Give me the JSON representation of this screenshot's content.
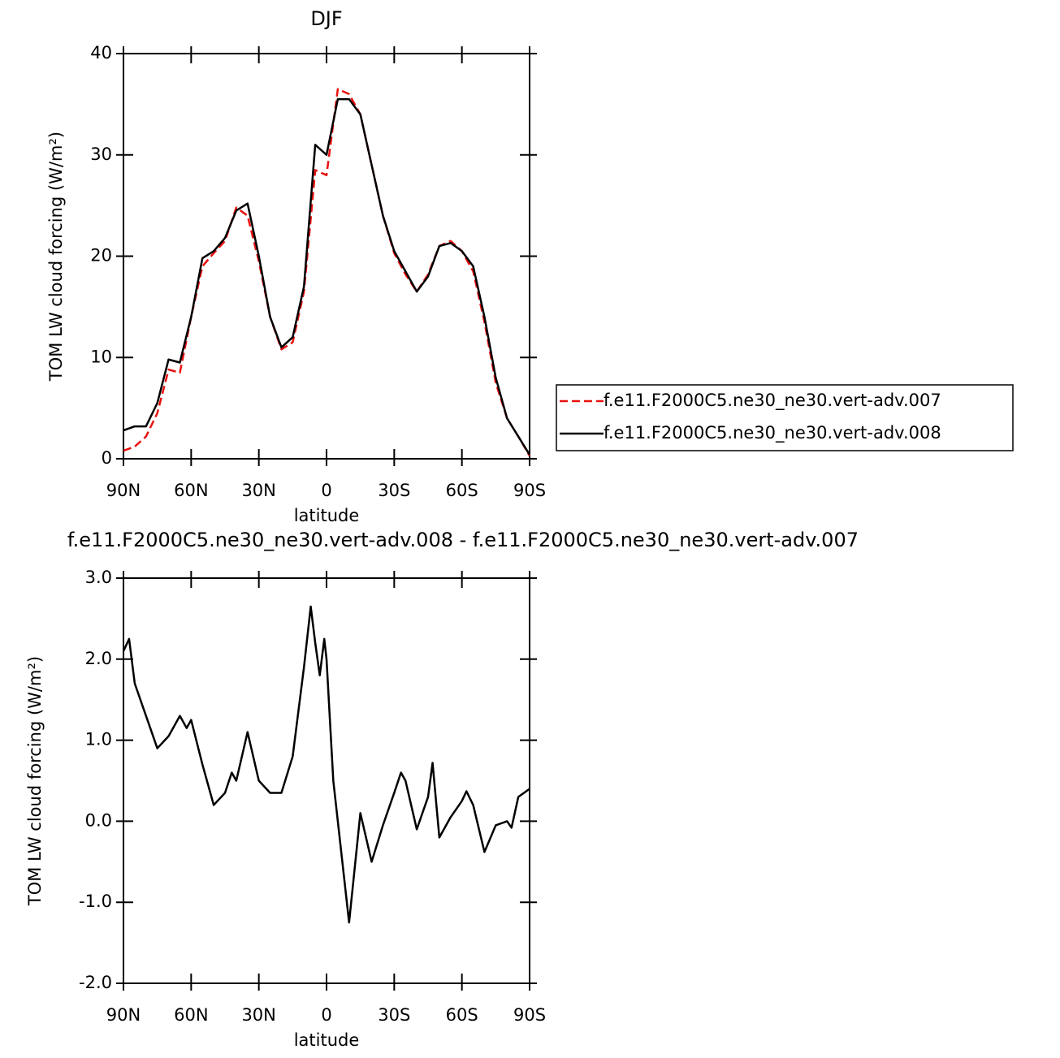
{
  "chart_data": [
    {
      "type": "line",
      "title": "DJF",
      "xlabel": "latitude",
      "ylabel": "TOM LW cloud forcing (W/m²)",
      "x": [
        90,
        85,
        80,
        75,
        70,
        65,
        60,
        55,
        50,
        45,
        40,
        35,
        30,
        25,
        20,
        15,
        10,
        5,
        0,
        -5,
        -10,
        -15,
        -20,
        -25,
        -30,
        -35,
        -40,
        -45,
        -50,
        -55,
        -60,
        -65,
        -70,
        -75,
        -80,
        -85,
        -90
      ],
      "series": [
        {
          "name": "f.e11.F2000C5.ne30_ne30.vert-adv.007",
          "color": "#e8120f",
          "line_style": "dashed",
          "values": [
            0.8,
            1.2,
            2.2,
            4.5,
            8.8,
            8.5,
            14,
            19,
            20.3,
            21.5,
            24.8,
            24,
            19.5,
            14,
            10.8,
            11.5,
            16.5,
            28.5,
            28,
            36.5,
            36,
            34,
            29,
            24,
            20.3,
            18.2,
            16.5,
            18.2,
            21,
            21.5,
            20.5,
            18.5,
            13.5,
            7.5,
            4,
            2.2,
            0.3
          ]
        },
        {
          "name": "f.e11.F2000C5.ne30_ne30.vert-adv.008",
          "color": "#000000",
          "line_style": "solid",
          "values": [
            2.8,
            3.2,
            3.2,
            5.5,
            9.8,
            9.5,
            14,
            19.8,
            20.5,
            21.8,
            24.5,
            25.2,
            20,
            14,
            11,
            12,
            17,
            31,
            30,
            35.5,
            35.5,
            34,
            29,
            24,
            20.5,
            18.5,
            16.5,
            18,
            21,
            21.3,
            20.5,
            19,
            14,
            8,
            4,
            2.2,
            0.4
          ]
        }
      ],
      "xlim": [
        90,
        -90
      ],
      "xticks": [
        {
          "value": 90,
          "label": "90N"
        },
        {
          "value": 60,
          "label": "60N"
        },
        {
          "value": 30,
          "label": "30N"
        },
        0,
        {
          "value": -30,
          "label": "30S"
        },
        {
          "value": -60,
          "label": "60S"
        },
        {
          "value": -90,
          "label": "90S"
        }
      ],
      "ylim": [
        0,
        40
      ],
      "yticks": [
        0,
        10,
        20,
        30,
        40
      ],
      "legend": "right"
    },
    {
      "type": "line",
      "title": "f.e11.F2000C5.ne30_ne30.vert-adv.008 - f.e11.F2000C5.ne30_ne30.vert-adv.007",
      "xlabel": "latitude",
      "ylabel": "TOM LW cloud forcing (W/m²)",
      "x": [
        90,
        87.5,
        85,
        80,
        75,
        70,
        65,
        62,
        60,
        55,
        50,
        45,
        42,
        40,
        35,
        30,
        25,
        20,
        15,
        10,
        7,
        5,
        3,
        1,
        0,
        -3,
        -5,
        -10,
        -15,
        -20,
        -25,
        -30,
        -33,
        -35,
        -40,
        -45,
        -47,
        -50,
        -55,
        -60,
        -62,
        -65,
        -70,
        -75,
        -80,
        -82,
        -85,
        -90
      ],
      "values": [
        2.1,
        2.25,
        1.7,
        1.3,
        0.9,
        1.05,
        1.3,
        1.15,
        1.25,
        0.7,
        0.2,
        0.35,
        0.6,
        0.5,
        1.1,
        0.5,
        0.35,
        0.35,
        0.8,
        1.9,
        2.65,
        2.2,
        1.8,
        2.25,
        2.0,
        0.5,
        0.0,
        -1.25,
        0.1,
        -0.5,
        -0.05,
        0.35,
        0.6,
        0.5,
        -0.1,
        0.3,
        0.72,
        -0.2,
        0.05,
        0.25,
        0.37,
        0.2,
        -0.38,
        -0.05,
        0.0,
        -0.08,
        0.3,
        0.4
      ],
      "color": "#000000",
      "xlim": [
        90,
        -90
      ],
      "xticks": [
        {
          "value": 90,
          "label": "90N"
        },
        {
          "value": 60,
          "label": "60N"
        },
        {
          "value": 30,
          "label": "30N"
        },
        0,
        {
          "value": -30,
          "label": "30S"
        },
        {
          "value": -60,
          "label": "60S"
        },
        {
          "value": -90,
          "label": "90S"
        }
      ],
      "ylim": [
        -2,
        3
      ],
      "yticks": [
        {
          "value": -2,
          "label": "-2.0"
        },
        {
          "value": -1,
          "label": "-1.0"
        },
        {
          "value": 0,
          "label": "0.0"
        },
        {
          "value": 1,
          "label": "1.0"
        },
        {
          "value": 2,
          "label": "2.0"
        },
        {
          "value": 3,
          "label": "3.0"
        }
      ]
    }
  ]
}
